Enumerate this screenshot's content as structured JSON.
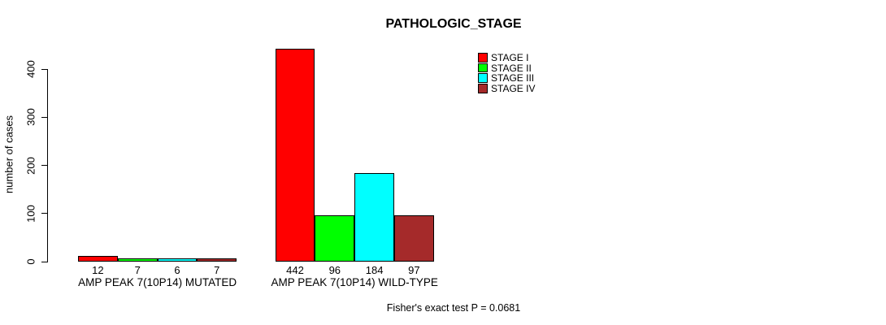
{
  "title": "PATHOLOGIC_STAGE",
  "footnote": "Fisher's exact test P = 0.0681",
  "chart_data": {
    "type": "bar",
    "title": "PATHOLOGIC_STAGE",
    "xlabel": "",
    "ylabel": "number of cases",
    "ylim": [
      0,
      450
    ],
    "yticks": [
      0,
      100,
      200,
      300,
      400
    ],
    "grid": false,
    "legend_position": "top-right",
    "bar_border_color": "#000000",
    "categories": [
      "AMP PEAK 7(10P14) MUTATED",
      "AMP PEAK 7(10P14) WILD-TYPE"
    ],
    "series": [
      {
        "name": "STAGE I",
        "color": "#FF0000",
        "values": [
          12,
          442
        ]
      },
      {
        "name": "STAGE II",
        "color": "#00FF00",
        "values": [
          7,
          96
        ]
      },
      {
        "name": "STAGE III",
        "color": "#00FFFF",
        "values": [
          6,
          184
        ]
      },
      {
        "name": "STAGE IV",
        "color": "#A52A2A",
        "values": [
          7,
          97
        ]
      }
    ],
    "bar_value_labels": [
      [
        12,
        7,
        6,
        7
      ],
      [
        442,
        96,
        184,
        97
      ]
    ],
    "footnote": "Fisher's exact test P = 0.0681"
  }
}
